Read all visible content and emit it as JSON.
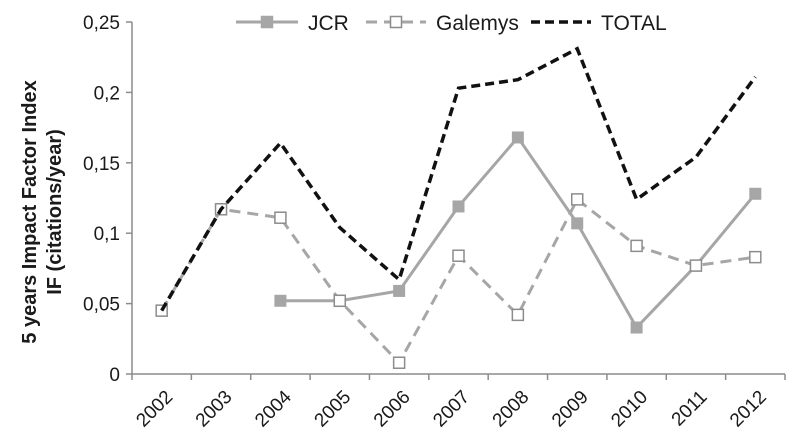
{
  "chart_data": {
    "type": "line",
    "categories": [
      "2002",
      "2003",
      "2004",
      "2005",
      "2006",
      "2007",
      "2008",
      "2009",
      "2010",
      "2011",
      "2012"
    ],
    "ylabel_line1": "5 years Impact Factor Index",
    "ylabel_line2": "IF (citations/year)",
    "ylim": [
      0,
      0.25
    ],
    "yticks": [
      0,
      0.05,
      0.1,
      0.15,
      0.2,
      0.25
    ],
    "ytick_labels": [
      "0",
      "0,05",
      "0,1",
      "0,15",
      "0,2",
      "0,25"
    ],
    "grid": false,
    "legend_position": "top",
    "series": [
      {
        "name": "JCR",
        "style": "solid-filled-square",
        "color": "#a6a6a6",
        "values": [
          null,
          null,
          0.052,
          0.052,
          0.059,
          0.119,
          0.168,
          0.107,
          0.033,
          0.077,
          0.128
        ]
      },
      {
        "name": "Galemys",
        "style": "dashed-open-square",
        "color": "#a6a6a6",
        "values": [
          0.045,
          0.117,
          0.111,
          0.052,
          0.008,
          0.084,
          0.042,
          0.124,
          0.091,
          0.077,
          0.083
        ]
      },
      {
        "name": "TOTAL",
        "style": "dashed",
        "color": "#111111",
        "values": [
          0.045,
          0.117,
          0.164,
          0.104,
          0.067,
          0.203,
          0.209,
          0.231,
          0.124,
          0.154,
          0.211
        ]
      }
    ]
  }
}
